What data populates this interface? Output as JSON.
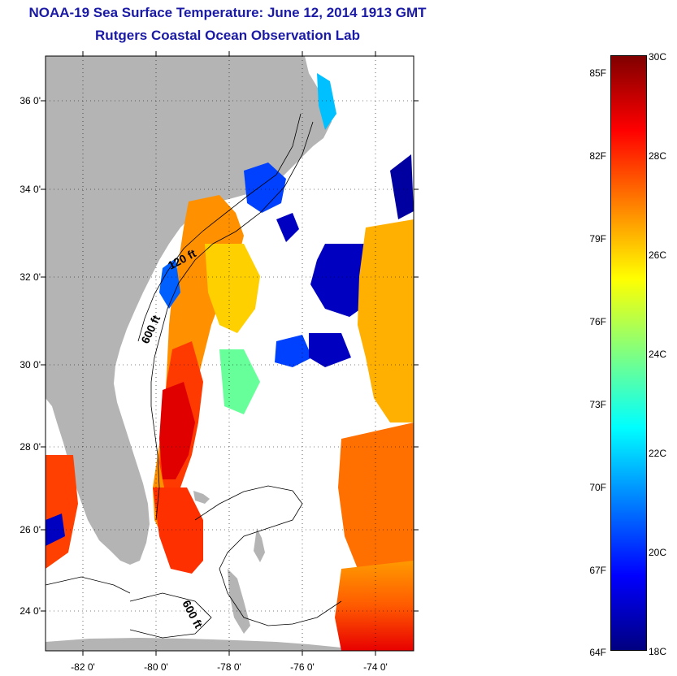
{
  "title": {
    "line1": "NOAA-19 Sea Surface Temperature:  June 12, 2014 1913 GMT",
    "line2": "Rutgers Coastal Ocean Observation Lab"
  },
  "map": {
    "lat_labels": [
      "36 0'",
      "34 0'",
      "32 0'",
      "30 0'",
      "28 0'",
      "26 0'",
      "24 0'"
    ],
    "lon_labels": [
      "-82 0'",
      "-80 0'",
      "-78 0'",
      "-76 0'",
      "-74 0'"
    ],
    "contour_labels": [
      "120 ft",
      "600 ft",
      "600 ft"
    ],
    "colors": {
      "land": "#b4b4b4",
      "ocean_nodata": "#ffffff",
      "contour": "#000000"
    }
  },
  "colorbar": {
    "fahrenheit_labels": [
      "85F",
      "82F",
      "79F",
      "76F",
      "73F",
      "70F",
      "67F",
      "64F"
    ],
    "celsius_labels": [
      "30C",
      "28C",
      "26C",
      "24C",
      "22C",
      "20C",
      "18C"
    ],
    "range_celsius": [
      18,
      30
    ],
    "stops": [
      "#000080",
      "#0000ff",
      "#0080ff",
      "#00ffff",
      "#80ff80",
      "#ffff00",
      "#ff8000",
      "#ff0000",
      "#800000"
    ]
  }
}
